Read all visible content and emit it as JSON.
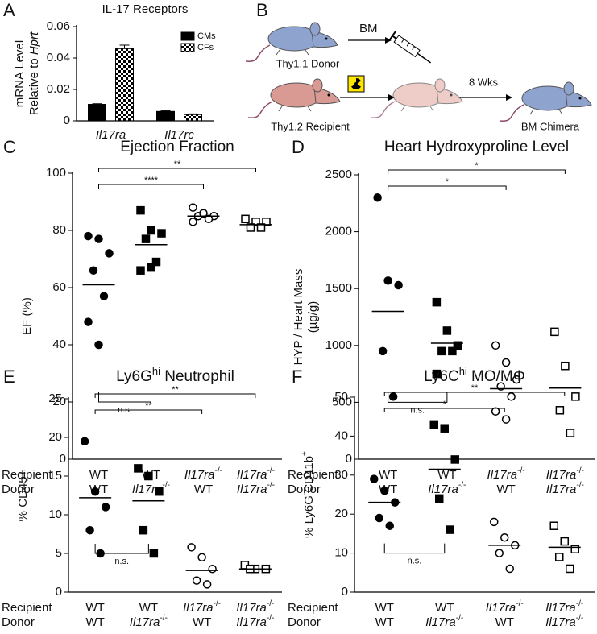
{
  "chart_data": [
    {
      "type": "bar",
      "panel": "A",
      "title": "IL-17 Receptors",
      "ylabel": [
        "mRNA Level",
        [
          {
            "text": "Relative to "
          },
          {
            "text": "Hprt",
            "it": true
          }
        ]
      ],
      "categories": [
        [
          {
            "text": "Il17ra",
            "it": true
          }
        ],
        [
          {
            "text": "Il17rc",
            "it": true
          }
        ]
      ],
      "series": [
        {
          "name": "CMs",
          "color": "#000000",
          "values": [
            0.0105,
            0.006
          ],
          "errors": [
            0.0004,
            0.0005
          ]
        },
        {
          "name": "CFs",
          "color": "#000000",
          "pattern": "checker",
          "values": [
            0.046,
            0.004
          ],
          "errors": [
            0.0022,
            0.0004
          ]
        }
      ],
      "ylim": [
        0,
        0.06
      ],
      "yticks": [
        0,
        0.02,
        0.04,
        0.06
      ],
      "legend": "upper right"
    },
    {
      "type": "dot",
      "panel": "C",
      "title": "Ejection Fraction",
      "ylabel": "EF (%)",
      "ylim": [
        0,
        100
      ],
      "yticks": [
        0,
        20,
        40,
        60,
        80,
        100
      ],
      "row_labels": [
        "Recipient",
        "Donor"
      ],
      "recipients": [
        "WT",
        "WT",
        [
          {
            "text": "Il17ra",
            "it": true
          },
          {
            "text": "-/-",
            "sup": true
          }
        ],
        [
          {
            "text": "Il17ra",
            "it": true
          },
          {
            "text": "-/-",
            "sup": true
          }
        ]
      ],
      "donors": [
        "WT",
        [
          {
            "text": "Il17ra",
            "it": true
          },
          {
            "text": "-/-",
            "sup": true
          }
        ],
        "WT",
        [
          {
            "text": "Il17ra",
            "it": true
          },
          {
            "text": "-/-",
            "sup": true
          }
        ]
      ],
      "groups": [
        {
          "values": [
            78,
            77,
            72,
            66,
            57,
            48,
            40
          ],
          "mean": 61,
          "marker": "circle",
          "filled": true
        },
        {
          "values": [
            87,
            80,
            79,
            77,
            69,
            66,
            67
          ],
          "mean": 75,
          "marker": "square",
          "filled": true
        },
        {
          "values": [
            88,
            86,
            85,
            85,
            84,
            83,
            86
          ],
          "mean": 85,
          "marker": "circle",
          "filled": false
        },
        {
          "values": [
            84,
            83,
            83,
            81,
            81
          ],
          "mean": 82,
          "marker": "square",
          "filled": false
        }
      ],
      "annotations": [
        {
          "text": "**",
          "groups": [
            0,
            3
          ]
        },
        {
          "text": "****",
          "groups": [
            0,
            2
          ]
        },
        {
          "text": "n.s.",
          "groups": [
            0,
            1
          ],
          "below": true
        }
      ]
    },
    {
      "type": "dot",
      "panel": "D",
      "title": "Heart Hydroxyproline Level",
      "ylabel": [
        "HYP / Heart Mass",
        "(µg/g)"
      ],
      "ylim": [
        0,
        2500
      ],
      "yticks": [
        0,
        500,
        1000,
        1500,
        2000,
        2500
      ],
      "row_labels": [
        "Recipient",
        "Donor"
      ],
      "recipients": [
        "WT",
        "WT",
        [
          {
            "text": "Il17ra",
            "it": true
          },
          {
            "text": "-/-",
            "sup": true
          }
        ],
        [
          {
            "text": "Il17ra",
            "it": true
          },
          {
            "text": "-/-",
            "sup": true
          }
        ]
      ],
      "donors": [
        "WT",
        [
          {
            "text": "Il17ra",
            "it": true
          },
          {
            "text": "-/-",
            "sup": true
          }
        ],
        "WT",
        [
          {
            "text": "Il17ra",
            "it": true
          },
          {
            "text": "-/-",
            "sup": true
          }
        ]
      ],
      "groups": [
        {
          "values": [
            2300,
            1570,
            1530,
            950,
            550
          ],
          "mean": 1300,
          "marker": "circle",
          "filled": true
        },
        {
          "values": [
            1380,
            1130,
            1000,
            950,
            950,
            750
          ],
          "mean": 1020,
          "marker": "square",
          "filled": true
        },
        {
          "values": [
            1000,
            850,
            700,
            640,
            550,
            420,
            350
          ],
          "mean": 620,
          "marker": "circle",
          "filled": false
        },
        {
          "values": [
            1120,
            820,
            550,
            430,
            230
          ],
          "mean": 625,
          "marker": "square",
          "filled": false
        }
      ],
      "annotations": [
        {
          "text": "*",
          "groups": [
            0,
            3
          ]
        },
        {
          "text": "*",
          "groups": [
            0,
            2
          ]
        },
        {
          "text": "n.s.",
          "groups": [
            0,
            1
          ],
          "below": true
        }
      ]
    },
    {
      "type": "dot",
      "panel": "E",
      "title": [
        {
          "text": "Ly6G"
        },
        {
          "text": "hi",
          "sup": true
        },
        {
          "text": " Neutrophil"
        }
      ],
      "ylabel": "% CD45+",
      "ylim": [
        0,
        25
      ],
      "yticks": [
        0,
        5,
        10,
        15,
        20,
        25
      ],
      "row_labels": [
        "Recipient",
        "Donor"
      ],
      "recipients": [
        "WT",
        "WT",
        [
          {
            "text": "Il17ra",
            "it": true
          },
          {
            "text": "-/-",
            "sup": true
          }
        ],
        [
          {
            "text": "Il17ra",
            "it": true
          },
          {
            "text": "-/-",
            "sup": true
          }
        ]
      ],
      "donors": [
        "WT",
        [
          {
            "text": "Il17ra",
            "it": true
          },
          {
            "text": "-/-",
            "sup": true
          }
        ],
        "WT",
        [
          {
            "text": "Il17ra",
            "it": true
          },
          {
            "text": "-/-",
            "sup": true
          }
        ]
      ],
      "groups": [
        {
          "values": [
            19.5,
            13,
            11,
            8,
            5
          ],
          "mean": 12.2,
          "marker": "circle",
          "filled": true
        },
        {
          "values": [
            16,
            15,
            13,
            8,
            5
          ],
          "mean": 11.8,
          "marker": "square",
          "filled": true
        },
        {
          "values": [
            5.8,
            4.5,
            3,
            1.5,
            1
          ],
          "mean": 2.8,
          "marker": "circle",
          "filled": false
        },
        {
          "values": [
            3.5,
            3,
            3,
            3
          ],
          "mean": 3,
          "marker": "square",
          "filled": false
        }
      ],
      "annotations": [
        {
          "text": "**",
          "groups": [
            0,
            3
          ]
        },
        {
          "text": "**",
          "groups": [
            0,
            2
          ]
        },
        {
          "text": "n.s.",
          "groups": [
            0,
            1
          ],
          "below": true
        }
      ]
    },
    {
      "type": "dot",
      "panel": "F",
      "title": [
        {
          "text": "Ly6C"
        },
        {
          "text": "hi",
          "sup": true
        },
        {
          "text": " MO/MΦ"
        }
      ],
      "ylabel": [
        {
          "text": "% Ly6G"
        },
        {
          "text": "-",
          "sup": true
        },
        {
          "text": "CD11b"
        },
        {
          "text": "+",
          "sup": true
        }
      ],
      "ylim": [
        0,
        50
      ],
      "yticks": [
        0,
        10,
        20,
        30,
        40,
        50
      ],
      "row_labels": [
        "Recipient",
        "Donor"
      ],
      "recipients": [
        "WT",
        "WT",
        [
          {
            "text": "Il17ra",
            "it": true
          },
          {
            "text": "-/-",
            "sup": true
          }
        ],
        [
          {
            "text": "Il17ra",
            "it": true
          },
          {
            "text": "-/-",
            "sup": true
          }
        ]
      ],
      "donors": [
        "WT",
        [
          {
            "text": "Il17ra",
            "it": true
          },
          {
            "text": "-/-",
            "sup": true
          }
        ],
        "WT",
        [
          {
            "text": "Il17ra",
            "it": true
          },
          {
            "text": "-/-",
            "sup": true
          }
        ]
      ],
      "groups": [
        {
          "values": [
            29,
            26,
            23,
            19,
            17
          ],
          "mean": 23,
          "marker": "circle",
          "filled": true
        },
        {
          "values": [
            43,
            42,
            34,
            24,
            16
          ],
          "mean": 31.5,
          "marker": "square",
          "filled": true
        },
        {
          "values": [
            18,
            14,
            12,
            10,
            6
          ],
          "mean": 12,
          "marker": "circle",
          "filled": false
        },
        {
          "values": [
            17,
            13,
            11,
            9,
            6
          ],
          "mean": 11.5,
          "marker": "square",
          "filled": false
        }
      ],
      "annotations": [
        {
          "text": "**",
          "groups": [
            0,
            3
          ]
        },
        {
          "text": "*",
          "groups": [
            0,
            2
          ]
        },
        {
          "text": "n.s.",
          "groups": [
            0,
            1
          ],
          "below": true
        }
      ]
    }
  ],
  "diagram": {
    "panel": "B",
    "bm": "BM",
    "donor": "Thy1.1 Donor",
    "recipient": "Thy1.2 Recipient",
    "weeks": "8 Wks",
    "chimera": "BM Chimera"
  }
}
